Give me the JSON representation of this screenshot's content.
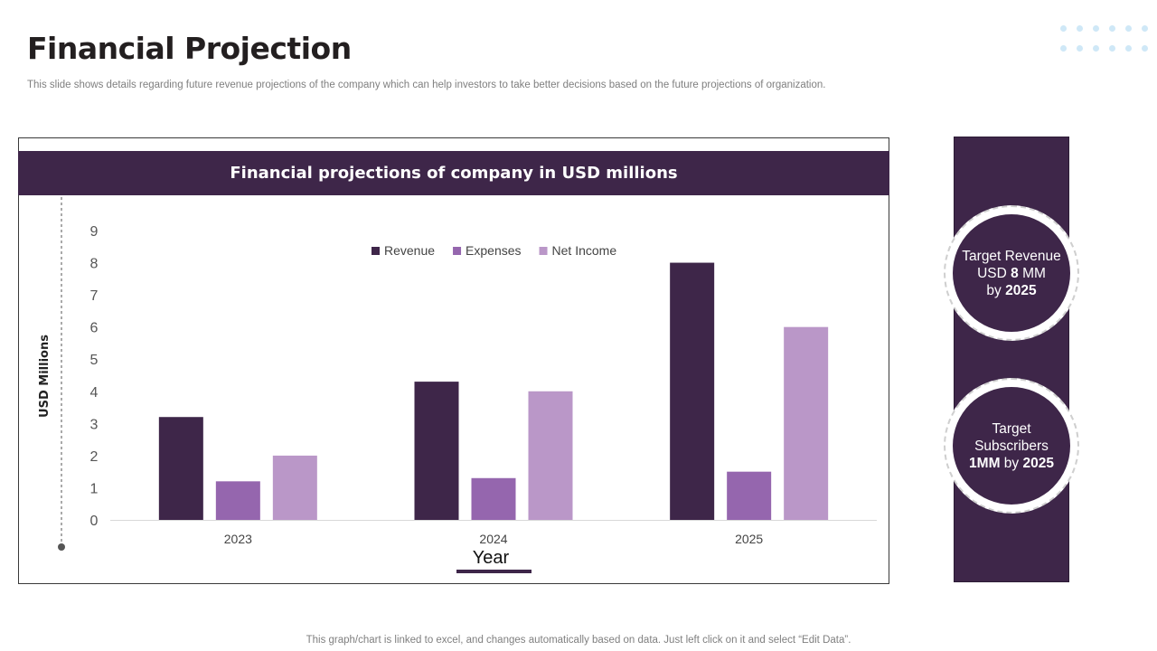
{
  "page": {
    "title": "Financial Projection",
    "subtitle": "This slide shows details regarding future revenue projections of the company which can help investors to take better decisions based on the future projections of organization.",
    "footnote": "This graph/chart is linked to excel,  and changes automatically based on data. Just left click on it and select “Edit Data”."
  },
  "chart_header": "Financial projections of company in USD millions",
  "colors": {
    "dark_purple": "#3e2649",
    "revenue": "#3e2649",
    "expenses": "#9566ae",
    "net_income": "#ba97c8",
    "dots": "#cfe8f7"
  },
  "chart_data": {
    "type": "bar",
    "categories": [
      "2023",
      "2024",
      "2025"
    ],
    "series": [
      {
        "name": "Revenue",
        "values": [
          3.2,
          4.3,
          8
        ]
      },
      {
        "name": "Expenses",
        "values": [
          1.2,
          1.3,
          1.5
        ]
      },
      {
        "name": "Net Income",
        "values": [
          2,
          4,
          6
        ]
      }
    ],
    "xlabel": "Year",
    "ylabel": "USD  Millions",
    "ylim": [
      0,
      9
    ],
    "yticks": [
      0,
      1,
      2,
      3,
      4,
      5,
      6,
      7,
      8,
      9
    ],
    "legend_position": "top-center",
    "grid": false
  },
  "targets": {
    "revenue": {
      "line1": "Target Revenue",
      "prefix": "USD ",
      "amount": "8",
      "suffix": " MM",
      "by": "by ",
      "year": "2025"
    },
    "subscribers": {
      "line1": "Target",
      "line2": "Subscribers",
      "amount": "1MM",
      "by": " by ",
      "year": "2025"
    }
  }
}
